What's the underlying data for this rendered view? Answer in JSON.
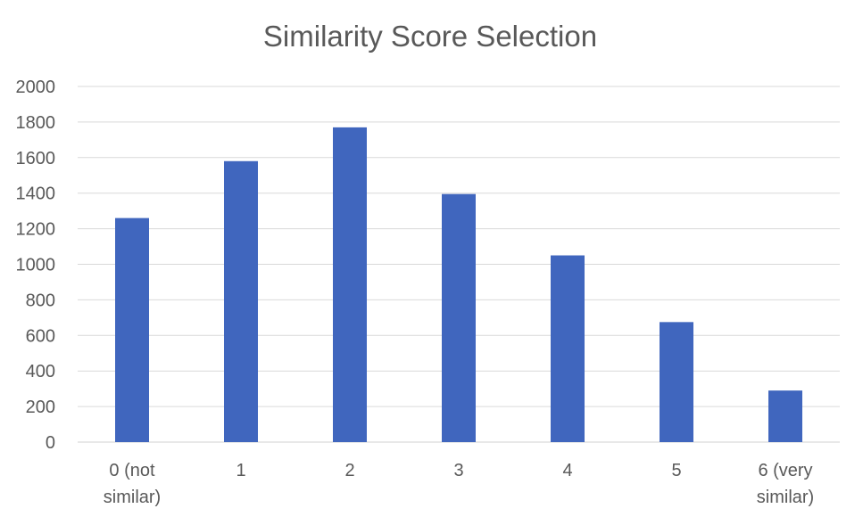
{
  "chart_data": {
    "type": "bar",
    "title": "Similarity Score Selection",
    "xlabel": "",
    "ylabel": "",
    "categories": [
      [
        "0 (not",
        "similar)"
      ],
      [
        "1"
      ],
      [
        "2"
      ],
      [
        "3"
      ],
      [
        "4"
      ],
      [
        "5"
      ],
      [
        "6 (very",
        "similar)"
      ]
    ],
    "values": [
      1260,
      1580,
      1770,
      1395,
      1050,
      675,
      290
    ],
    "ylim": [
      0,
      2000
    ],
    "yticks": [
      0,
      200,
      400,
      600,
      800,
      1000,
      1200,
      1400,
      1600,
      1800,
      2000
    ],
    "grid": true,
    "legend": "none",
    "bar_color": "#4066be",
    "grid_color": "#d9d9d9",
    "text_color": "#595959"
  }
}
